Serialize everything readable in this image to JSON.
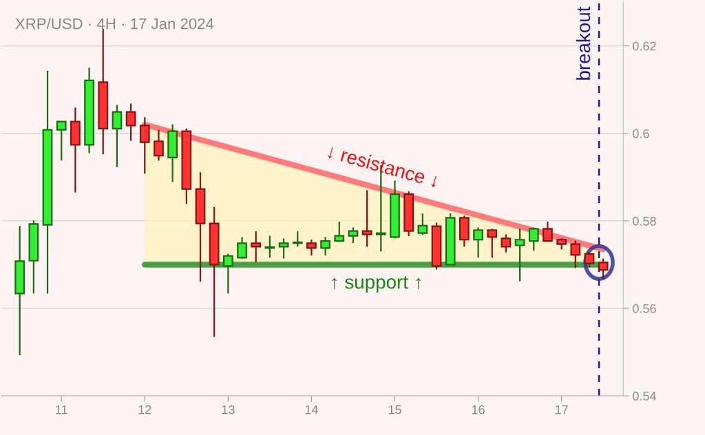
{
  "chart_data": {
    "type": "candlestick",
    "title": "XRP/USD · 4H · 17 Jan 2024",
    "x": [
      10.5,
      10.6667,
      10.8333,
      11.0,
      11.1667,
      11.3333,
      11.5,
      11.6667,
      11.8333,
      12.0,
      12.1667,
      12.3333,
      12.5,
      12.6667,
      12.8333,
      13.0,
      13.1667,
      13.3333,
      13.5,
      13.6667,
      13.8333,
      14.0,
      14.1667,
      14.3333,
      14.5,
      14.6667,
      14.8333,
      15.0,
      15.1667,
      15.3333,
      15.5,
      15.6667,
      15.8333,
      16.0,
      16.1667,
      16.3333,
      16.5,
      16.6667,
      16.8333,
      17.0,
      17.1667,
      17.3333,
      17.5
    ],
    "ohlc": [
      [
        0.5634,
        0.5788,
        0.5493,
        0.5708
      ],
      [
        0.5709,
        0.5801,
        0.5634,
        0.5793
      ],
      [
        0.5791,
        0.6143,
        0.5634,
        0.6008
      ],
      [
        0.6008,
        0.6027,
        0.5938,
        0.6027
      ],
      [
        0.6027,
        0.6059,
        0.5865,
        0.5974
      ],
      [
        0.5974,
        0.615,
        0.5955,
        0.6121
      ],
      [
        0.6117,
        0.6239,
        0.5952,
        0.6011
      ],
      [
        0.6011,
        0.6065,
        0.5923,
        0.6049
      ],
      [
        0.6049,
        0.6068,
        0.5983,
        0.6018
      ],
      [
        0.6018,
        0.6037,
        0.5908,
        0.598
      ],
      [
        0.5982,
        0.6008,
        0.5938,
        0.5949
      ],
      [
        0.5945,
        0.6021,
        0.5889,
        0.6005
      ],
      [
        0.6005,
        0.6011,
        0.5839,
        0.5873
      ],
      [
        0.5873,
        0.5911,
        0.5661,
        0.5794
      ],
      [
        0.5794,
        0.5832,
        0.5535,
        0.57
      ],
      [
        0.5697,
        0.5725,
        0.5634,
        0.572
      ],
      [
        0.5716,
        0.5763,
        0.5714,
        0.5749
      ],
      [
        0.5749,
        0.5776,
        0.5705,
        0.5741
      ],
      [
        0.5738,
        0.5766,
        0.5716,
        0.574
      ],
      [
        0.5741,
        0.576,
        0.5714,
        0.5749
      ],
      [
        0.5749,
        0.5776,
        0.5741,
        0.5751
      ],
      [
        0.5749,
        0.5757,
        0.5721,
        0.5738
      ],
      [
        0.5738,
        0.5763,
        0.5721,
        0.5754
      ],
      [
        0.5754,
        0.5798,
        0.5752,
        0.5766
      ],
      [
        0.5766,
        0.5785,
        0.5749,
        0.5777
      ],
      [
        0.5777,
        0.587,
        0.5741,
        0.5769
      ],
      [
        0.5769,
        0.5927,
        0.573,
        0.5772
      ],
      [
        0.5763,
        0.5892,
        0.576,
        0.5861
      ],
      [
        0.5861,
        0.5868,
        0.5765,
        0.5777
      ],
      [
        0.5772,
        0.5817,
        0.5768,
        0.5789
      ],
      [
        0.5788,
        0.5796,
        0.5689,
        0.5697
      ],
      [
        0.57,
        0.5817,
        0.5699,
        0.5807
      ],
      [
        0.5807,
        0.5812,
        0.5741,
        0.5757
      ],
      [
        0.5757,
        0.5785,
        0.5716,
        0.5779
      ],
      [
        0.5779,
        0.5782,
        0.5716,
        0.5763
      ],
      [
        0.576,
        0.5769,
        0.5728,
        0.5741
      ],
      [
        0.5744,
        0.5782,
        0.5662,
        0.5757
      ],
      [
        0.5754,
        0.5785,
        0.5732,
        0.5782
      ],
      [
        0.5782,
        0.5798,
        0.5754,
        0.5754
      ],
      [
        0.5757,
        0.576,
        0.5735,
        0.5747
      ],
      [
        0.5747,
        0.5755,
        0.5692,
        0.5722
      ],
      [
        0.5724,
        0.5727,
        0.5694,
        0.5703
      ],
      [
        0.5705,
        0.5714,
        0.5667,
        0.5688
      ]
    ],
    "colors": [
      "#33ee33",
      "#33ee33",
      "#33ee33",
      "#33ee33",
      "#ff3333",
      "#33ee33",
      "#ff3333",
      "#33ee33",
      "#ff3333",
      "#ff3333",
      "#ff3333",
      "#33ee33",
      "#ff3333",
      "#ff3333",
      "#ff3333",
      "#33ee33",
      "#33ee33",
      "#ff3333",
      "#33ee33",
      "#33ee33",
      "#33ee33",
      "#ff3333",
      "#33ee33",
      "#33ee33",
      "#33ee33",
      "#ff3333",
      "#33ee33",
      "#33ee33",
      "#ff3333",
      "#33ee33",
      "#ff3333",
      "#33ee33",
      "#ff3333",
      "#33ee33",
      "#ff3333",
      "#ff3333",
      "#33ee33",
      "#33ee33",
      "#ff3333",
      "#ff3333",
      "#ff3333",
      "#ff3333",
      "#ff3333"
    ],
    "series": [
      {
        "type": "line",
        "x": [
          12.0,
          17.5
        ],
        "values": [
          0.602,
          0.5735
        ],
        "color": "#ff7a7a"
      },
      {
        "type": "line",
        "x": [
          12.0,
          17.45
        ],
        "values": [
          0.57,
          0.57
        ],
        "color": "#4a9e46"
      }
    ],
    "annotations": [
      "↓ resistance ↓",
      "↑ support ↑"
    ],
    "ref_lines": [
      {
        "axis": "x",
        "value": 17.45,
        "label": "breakout",
        "color": "#1a1a99",
        "line_style": "dashed"
      }
    ],
    "xlim": [
      10.28,
      17.74
    ],
    "ylim": [
      0.54,
      0.63
    ],
    "xticks": [
      11,
      12,
      13,
      14,
      15,
      16,
      17
    ],
    "yticks": [
      0.54,
      0.56,
      0.58,
      0.6,
      0.62
    ],
    "grid": "y"
  }
}
